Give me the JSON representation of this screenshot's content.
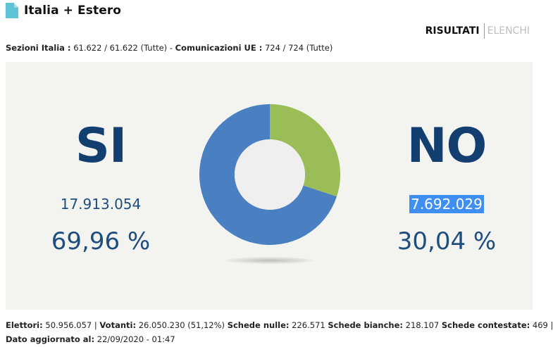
{
  "header": {
    "title": "Italia + Estero",
    "icon": "document-icon"
  },
  "tabs": {
    "active": "RISULTATI",
    "inactive": "ELENCHI"
  },
  "sezioni": {
    "italia_label": "Sezioni Italia :",
    "italia_value": "61.622 / 61.622 (Tutte)",
    "separator": "-",
    "ue_label": "Comunicazioni UE :",
    "ue_value": "724 / 724 (Tutte)"
  },
  "results": {
    "si": {
      "label": "SI",
      "votes": "17.913.054",
      "percent": "69,96 %",
      "share": 69.96,
      "color": "#4a7fc1"
    },
    "no": {
      "label": "NO",
      "votes": "7.692.029",
      "percent": "30,04 %",
      "share": 30.04,
      "color": "#9bbd57"
    }
  },
  "footer": {
    "elettori_label": "Elettori:",
    "elettori_value": "50.956.057 |",
    "votanti_label": "Votanti:",
    "votanti_value": "26.050.230 (51,12%)",
    "nulle_label": "Schede nulle:",
    "nulle_value": "226.571",
    "bianche_label": "Schede bianche:",
    "bianche_value": "218.107",
    "contestate_label": "Schede contestate:",
    "contestate_value": "469 |",
    "aggiornato_label": "Dato aggiornato al:",
    "aggiornato_value": "22/09/2020 - 01:47"
  },
  "colors": {
    "panel_bg": "#f3f3ef",
    "title_blue": "#123e70",
    "accent_teal": "#5fc4d6",
    "selection": "#3f8ef2"
  }
}
